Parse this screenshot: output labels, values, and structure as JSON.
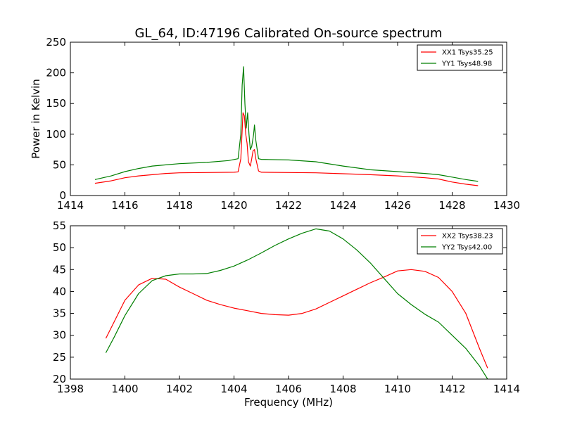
{
  "figure": {
    "title": "GL_64, ID:47196 Calibrated On-source spectrum"
  },
  "chart_data": [
    {
      "type": "line",
      "title": "GL_64, ID:47196 Calibrated On-source spectrum",
      "xlabel": "",
      "ylabel": "Power in Kelvin",
      "xlim": [
        1414,
        1430
      ],
      "ylim": [
        0,
        250
      ],
      "xticks": [
        "1414",
        "1416",
        "1418",
        "1420",
        "1422",
        "1424",
        "1426",
        "1428",
        "1430"
      ],
      "yticks": [
        "0",
        "50",
        "100",
        "150",
        "200",
        "250"
      ],
      "grid": false,
      "legend_position": "top-right",
      "series": [
        {
          "name": "XX1 Tsys35.25",
          "color": "#ff0000",
          "points": [
            [
              1414.9,
              20
            ],
            [
              1415.5,
              24
            ],
            [
              1416,
              29
            ],
            [
              1416.5,
              32
            ],
            [
              1417,
              34
            ],
            [
              1417.5,
              36
            ],
            [
              1418,
              37
            ],
            [
              1419,
              37.5
            ],
            [
              1420,
              38
            ],
            [
              1420.15,
              38.5
            ],
            [
              1420.25,
              60
            ],
            [
              1420.33,
              135
            ],
            [
              1420.38,
              130
            ],
            [
              1420.43,
              100
            ],
            [
              1420.48,
              85
            ],
            [
              1420.53,
              55
            ],
            [
              1420.6,
              48
            ],
            [
              1420.65,
              60
            ],
            [
              1420.7,
              73
            ],
            [
              1420.75,
              75
            ],
            [
              1420.8,
              60
            ],
            [
              1420.9,
              40
            ],
            [
              1421,
              38
            ],
            [
              1422,
              37.5
            ],
            [
              1423,
              37
            ],
            [
              1424,
              35.5
            ],
            [
              1425,
              34
            ],
            [
              1426,
              32
            ],
            [
              1427,
              29
            ],
            [
              1427.5,
              27
            ],
            [
              1428,
              22
            ],
            [
              1428.5,
              18.5
            ],
            [
              1428.95,
              16
            ]
          ]
        },
        {
          "name": "YY1 Tsys48.98",
          "color": "#007f00",
          "points": [
            [
              1414.9,
              26
            ],
            [
              1415.5,
              32
            ],
            [
              1416,
              39
            ],
            [
              1416.5,
              44
            ],
            [
              1417,
              48
            ],
            [
              1417.5,
              50
            ],
            [
              1418,
              52
            ],
            [
              1419,
              54
            ],
            [
              1419.8,
              57
            ],
            [
              1420.15,
              60
            ],
            [
              1420.25,
              100
            ],
            [
              1420.3,
              180
            ],
            [
              1420.35,
              210
            ],
            [
              1420.4,
              150
            ],
            [
              1420.45,
              110
            ],
            [
              1420.5,
              135
            ],
            [
              1420.55,
              100
            ],
            [
              1420.6,
              75
            ],
            [
              1420.65,
              80
            ],
            [
              1420.72,
              100
            ],
            [
              1420.75,
              115
            ],
            [
              1420.8,
              90
            ],
            [
              1420.9,
              60
            ],
            [
              1421,
              59
            ],
            [
              1422,
              58
            ],
            [
              1423,
              55
            ],
            [
              1424,
              48
            ],
            [
              1425,
              42
            ],
            [
              1426,
              39
            ],
            [
              1427,
              36
            ],
            [
              1427.5,
              34
            ],
            [
              1428,
              30
            ],
            [
              1428.5,
              26
            ],
            [
              1428.95,
              23
            ]
          ]
        }
      ]
    },
    {
      "type": "line",
      "title": "",
      "xlabel": "Frequency (MHz)",
      "ylabel": "",
      "xlim": [
        1398,
        1414
      ],
      "ylim": [
        20,
        55
      ],
      "xticks": [
        "1398",
        "1400",
        "1402",
        "1404",
        "1406",
        "1408",
        "1410",
        "1412",
        "1414"
      ],
      "yticks": [
        "20",
        "25",
        "30",
        "35",
        "40",
        "45",
        "50",
        "55"
      ],
      "grid": false,
      "legend_position": "top-right",
      "series": [
        {
          "name": "XX2 Tsys38.23",
          "color": "#ff0000",
          "points": [
            [
              1399.3,
              29.3
            ],
            [
              1399.6,
              33
            ],
            [
              1400,
              38
            ],
            [
              1400.5,
              41.5
            ],
            [
              1401,
              43
            ],
            [
              1401.5,
              42.8
            ],
            [
              1402,
              41
            ],
            [
              1402.5,
              39.5
            ],
            [
              1403,
              38
            ],
            [
              1403.5,
              37
            ],
            [
              1404,
              36.2
            ],
            [
              1404.5,
              35.6
            ],
            [
              1405,
              35
            ],
            [
              1405.5,
              34.7
            ],
            [
              1406,
              34.6
            ],
            [
              1406.5,
              35
            ],
            [
              1407,
              36
            ],
            [
              1407.5,
              37.5
            ],
            [
              1408,
              39
            ],
            [
              1408.5,
              40.5
            ],
            [
              1409,
              42
            ],
            [
              1409.5,
              43.3
            ],
            [
              1410,
              44.7
            ],
            [
              1410.5,
              45
            ],
            [
              1411,
              44.6
            ],
            [
              1411.5,
              43.2
            ],
            [
              1412,
              40
            ],
            [
              1412.5,
              35
            ],
            [
              1413,
              27
            ],
            [
              1413.3,
              22.5
            ]
          ]
        },
        {
          "name": "YY2 Tsys42.00",
          "color": "#007f00",
          "points": [
            [
              1399.3,
              26
            ],
            [
              1399.6,
              29.5
            ],
            [
              1400,
              34.5
            ],
            [
              1400.5,
              39.5
            ],
            [
              1401,
              42.5
            ],
            [
              1401.5,
              43.6
            ],
            [
              1402,
              44
            ],
            [
              1402.5,
              44
            ],
            [
              1403,
              44.1
            ],
            [
              1403.5,
              44.8
            ],
            [
              1404,
              45.8
            ],
            [
              1404.5,
              47.2
            ],
            [
              1405,
              48.8
            ],
            [
              1405.5,
              50.5
            ],
            [
              1406,
              52
            ],
            [
              1406.5,
              53.3
            ],
            [
              1407,
              54.3
            ],
            [
              1407.5,
              53.8
            ],
            [
              1408,
              52
            ],
            [
              1408.5,
              49.5
            ],
            [
              1409,
              46.5
            ],
            [
              1409.5,
              43
            ],
            [
              1410,
              39.5
            ],
            [
              1410.5,
              37
            ],
            [
              1411,
              34.8
            ],
            [
              1411.5,
              33
            ],
            [
              1412,
              30
            ],
            [
              1412.5,
              27
            ],
            [
              1413,
              23
            ],
            [
              1413.3,
              20
            ]
          ]
        }
      ]
    }
  ]
}
